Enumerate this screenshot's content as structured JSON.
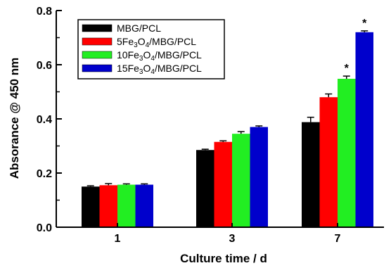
{
  "chart_data": {
    "type": "bar",
    "title": "",
    "xlabel": "Culture time / d",
    "ylabel": "Absorance @ 450 nm",
    "ylim": [
      0.0,
      0.8
    ],
    "yticks": [
      "0.0",
      "0.2",
      "0.4",
      "0.6",
      "0.8"
    ],
    "categories": [
      "1",
      "3",
      "7"
    ],
    "grid": false,
    "legend_position": "top-left",
    "series": [
      {
        "name": "MBG/PCL",
        "color": "#000000",
        "values": [
          0.15,
          0.285,
          0.388
        ],
        "errors": [
          0.003,
          0.003,
          0.018
        ]
      },
      {
        "name": "5Fe3O4/MBG/PCL",
        "color": "#ff0000",
        "values": [
          0.155,
          0.315,
          0.48
        ],
        "errors": [
          0.006,
          0.004,
          0.012
        ]
      },
      {
        "name": "10Fe3O4/MBG/PCL",
        "color": "#22ee22",
        "values": [
          0.157,
          0.345,
          0.548
        ],
        "errors": [
          0.003,
          0.008,
          0.01
        ]
      },
      {
        "name": "15Fe3O4/MBG/PCL",
        "color": "#0000cc",
        "values": [
          0.157,
          0.37,
          0.72
        ],
        "errors": [
          0.003,
          0.004,
          0.005
        ]
      }
    ],
    "significance": [
      {
        "category": "7",
        "series": "10Fe3O4/MBG/PCL",
        "label": "*"
      },
      {
        "category": "7",
        "series": "15Fe3O4/MBG/PCL",
        "label": "*"
      }
    ]
  }
}
